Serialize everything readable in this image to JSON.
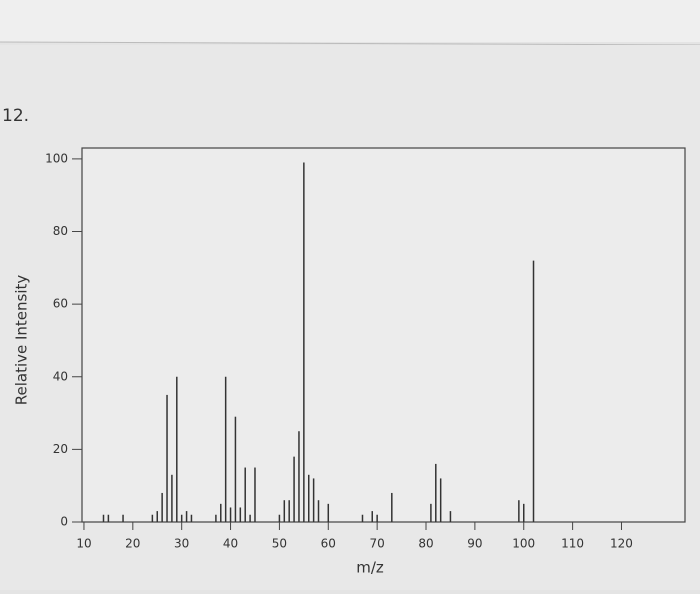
{
  "question_number": "12.",
  "chart_data": {
    "type": "stick",
    "x_label": "m/z",
    "y_label": "Relative Intensity",
    "x": [
      14,
      15,
      18,
      24,
      25,
      26,
      27,
      28,
      29,
      30,
      31,
      32,
      37,
      38,
      39,
      40,
      41,
      42,
      43,
      44,
      45,
      50,
      51,
      52,
      53,
      54,
      55,
      56,
      57,
      58,
      60,
      67,
      69,
      70,
      73,
      81,
      82,
      83,
      85,
      99,
      100,
      102
    ],
    "values": [
      2,
      2,
      2,
      2,
      3,
      8,
      35,
      13,
      40,
      2,
      3,
      2,
      2,
      5,
      40,
      4,
      29,
      4,
      15,
      2,
      15,
      2,
      6,
      6,
      18,
      25,
      99,
      13,
      12,
      6,
      5,
      2,
      3,
      2,
      8,
      5,
      16,
      12,
      3,
      6,
      5,
      72
    ],
    "color": "#333333",
    "xlim": [
      9.6,
      133
    ],
    "ylim": [
      0,
      103
    ],
    "xticks": [
      10,
      20,
      30,
      40,
      50,
      60,
      70,
      80,
      90,
      100,
      110,
      120
    ],
    "yticks": [
      0,
      20,
      40,
      60,
      80,
      100
    ]
  }
}
